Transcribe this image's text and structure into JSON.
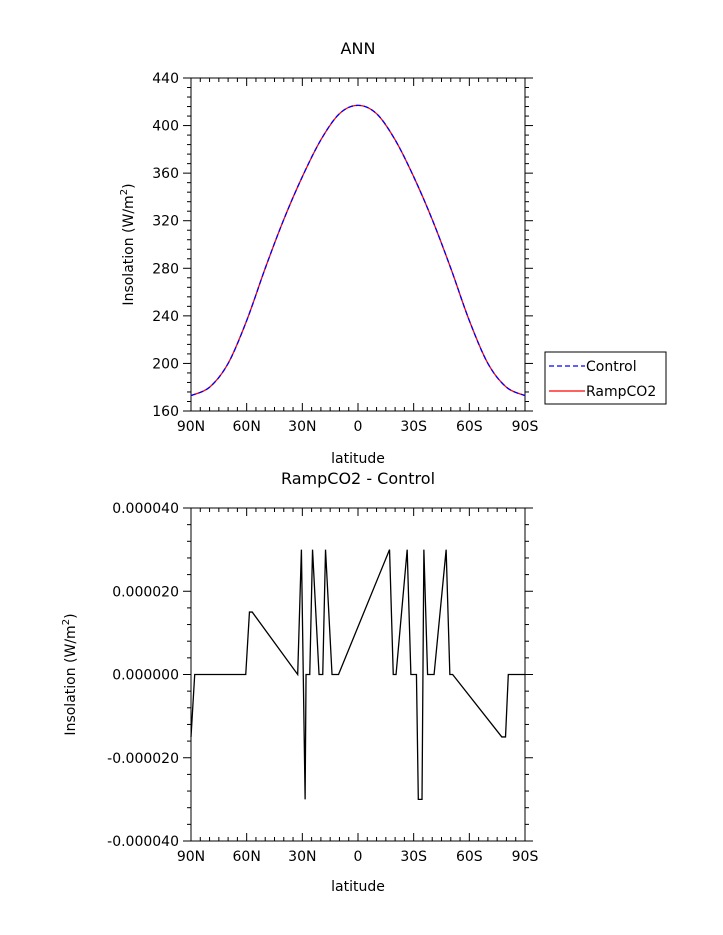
{
  "chart_data": [
    {
      "type": "line",
      "title": "ANN",
      "xlabel": "latitude",
      "ylabel": "Insolation (W/m²)",
      "ylabel_parts": {
        "main": "Insolation (W/m",
        "sup": "2",
        "close": ")"
      },
      "xlim": [
        90,
        -90
      ],
      "ylim": [
        160,
        440
      ],
      "x_ticks": [
        {
          "value": 90,
          "label": "90N"
        },
        {
          "value": 60,
          "label": "60N"
        },
        {
          "value": 30,
          "label": "30N"
        },
        {
          "value": 0,
          "label": "0"
        },
        {
          "value": -30,
          "label": "30S"
        },
        {
          "value": -60,
          "label": "60S"
        },
        {
          "value": -90,
          "label": "90S"
        }
      ],
      "y_ticks": [
        {
          "value": 160,
          "label": "160"
        },
        {
          "value": 200,
          "label": "200"
        },
        {
          "value": 240,
          "label": "240"
        },
        {
          "value": 280,
          "label": "280"
        },
        {
          "value": 320,
          "label": "320"
        },
        {
          "value": 360,
          "label": "360"
        },
        {
          "value": 400,
          "label": "400"
        },
        {
          "value": 440,
          "label": "440"
        }
      ],
      "grid": false,
      "legend_position": "right",
      "series": [
        {
          "name": "Control",
          "color": "#0000ff",
          "style": "dashed",
          "x": [
            90,
            80,
            70,
            60,
            50,
            40,
            30,
            20,
            10,
            0,
            -10,
            -20,
            -30,
            -40,
            -50,
            -60,
            -70,
            -80,
            -90
          ],
          "y": [
            173,
            180,
            200,
            236,
            280,
            321,
            357,
            388,
            410,
            417,
            410,
            388,
            357,
            321,
            280,
            236,
            200,
            180,
            173
          ]
        },
        {
          "name": "RampCO2",
          "color": "#ff0000",
          "style": "solid",
          "x": [
            90,
            80,
            70,
            60,
            50,
            40,
            30,
            20,
            10,
            0,
            -10,
            -20,
            -30,
            -40,
            -50,
            -60,
            -70,
            -80,
            -90
          ],
          "y": [
            173,
            180,
            200,
            236,
            280,
            321,
            357,
            388,
            410,
            417,
            410,
            388,
            357,
            321,
            280,
            236,
            200,
            180,
            173
          ]
        }
      ]
    },
    {
      "type": "line",
      "title": "RampCO2 - Control",
      "xlabel": "latitude",
      "ylabel": "Insolation (W/m²)",
      "ylabel_parts": {
        "main": "Insolation (W/m",
        "sup": "2",
        "close": ")"
      },
      "xlim": [
        90,
        -90
      ],
      "ylim": [
        -4e-05,
        4e-05
      ],
      "x_ticks": [
        {
          "value": 90,
          "label": "90N"
        },
        {
          "value": 60,
          "label": "60N"
        },
        {
          "value": 30,
          "label": "30N"
        },
        {
          "value": 0,
          "label": "0"
        },
        {
          "value": -30,
          "label": "30S"
        },
        {
          "value": -60,
          "label": "60S"
        },
        {
          "value": -90,
          "label": "90S"
        }
      ],
      "y_ticks": [
        {
          "value": -4e-05,
          "label": "-0.000040"
        },
        {
          "value": -2e-05,
          "label": "-0.000020"
        },
        {
          "value": 0,
          "label": "0.000000"
        },
        {
          "value": 2e-05,
          "label": "0.000020"
        },
        {
          "value": 4e-05,
          "label": "0.000040"
        }
      ],
      "grid": false,
      "series": [
        {
          "color": "#000000",
          "style": "solid",
          "x": [
            90,
            88,
            60.5,
            58.5,
            57,
            32.5,
            30.5,
            28.5,
            28,
            26,
            24.5,
            21,
            19,
            17.5,
            14,
            12,
            10.5,
            -17,
            -19,
            -20.5,
            -26.5,
            -28.5,
            -30,
            -31.5,
            -32.5,
            -34.5,
            -35.5,
            -37.5,
            -39.5,
            -41,
            -47.5,
            -49.5,
            -51,
            -77.5,
            -79.5,
            -81,
            -90
          ],
          "y": [
            -1.5e-05,
            0,
            0,
            1.5e-05,
            1.5e-05,
            0,
            3e-05,
            -3e-05,
            0,
            0,
            3e-05,
            0,
            0,
            3e-05,
            0,
            0,
            0,
            3e-05,
            0,
            0,
            3e-05,
            0,
            0,
            0,
            -3e-05,
            -3e-05,
            3e-05,
            0,
            0,
            0,
            3e-05,
            0,
            0,
            -1.5e-05,
            -1.5e-05,
            0,
            0
          ]
        }
      ]
    }
  ]
}
